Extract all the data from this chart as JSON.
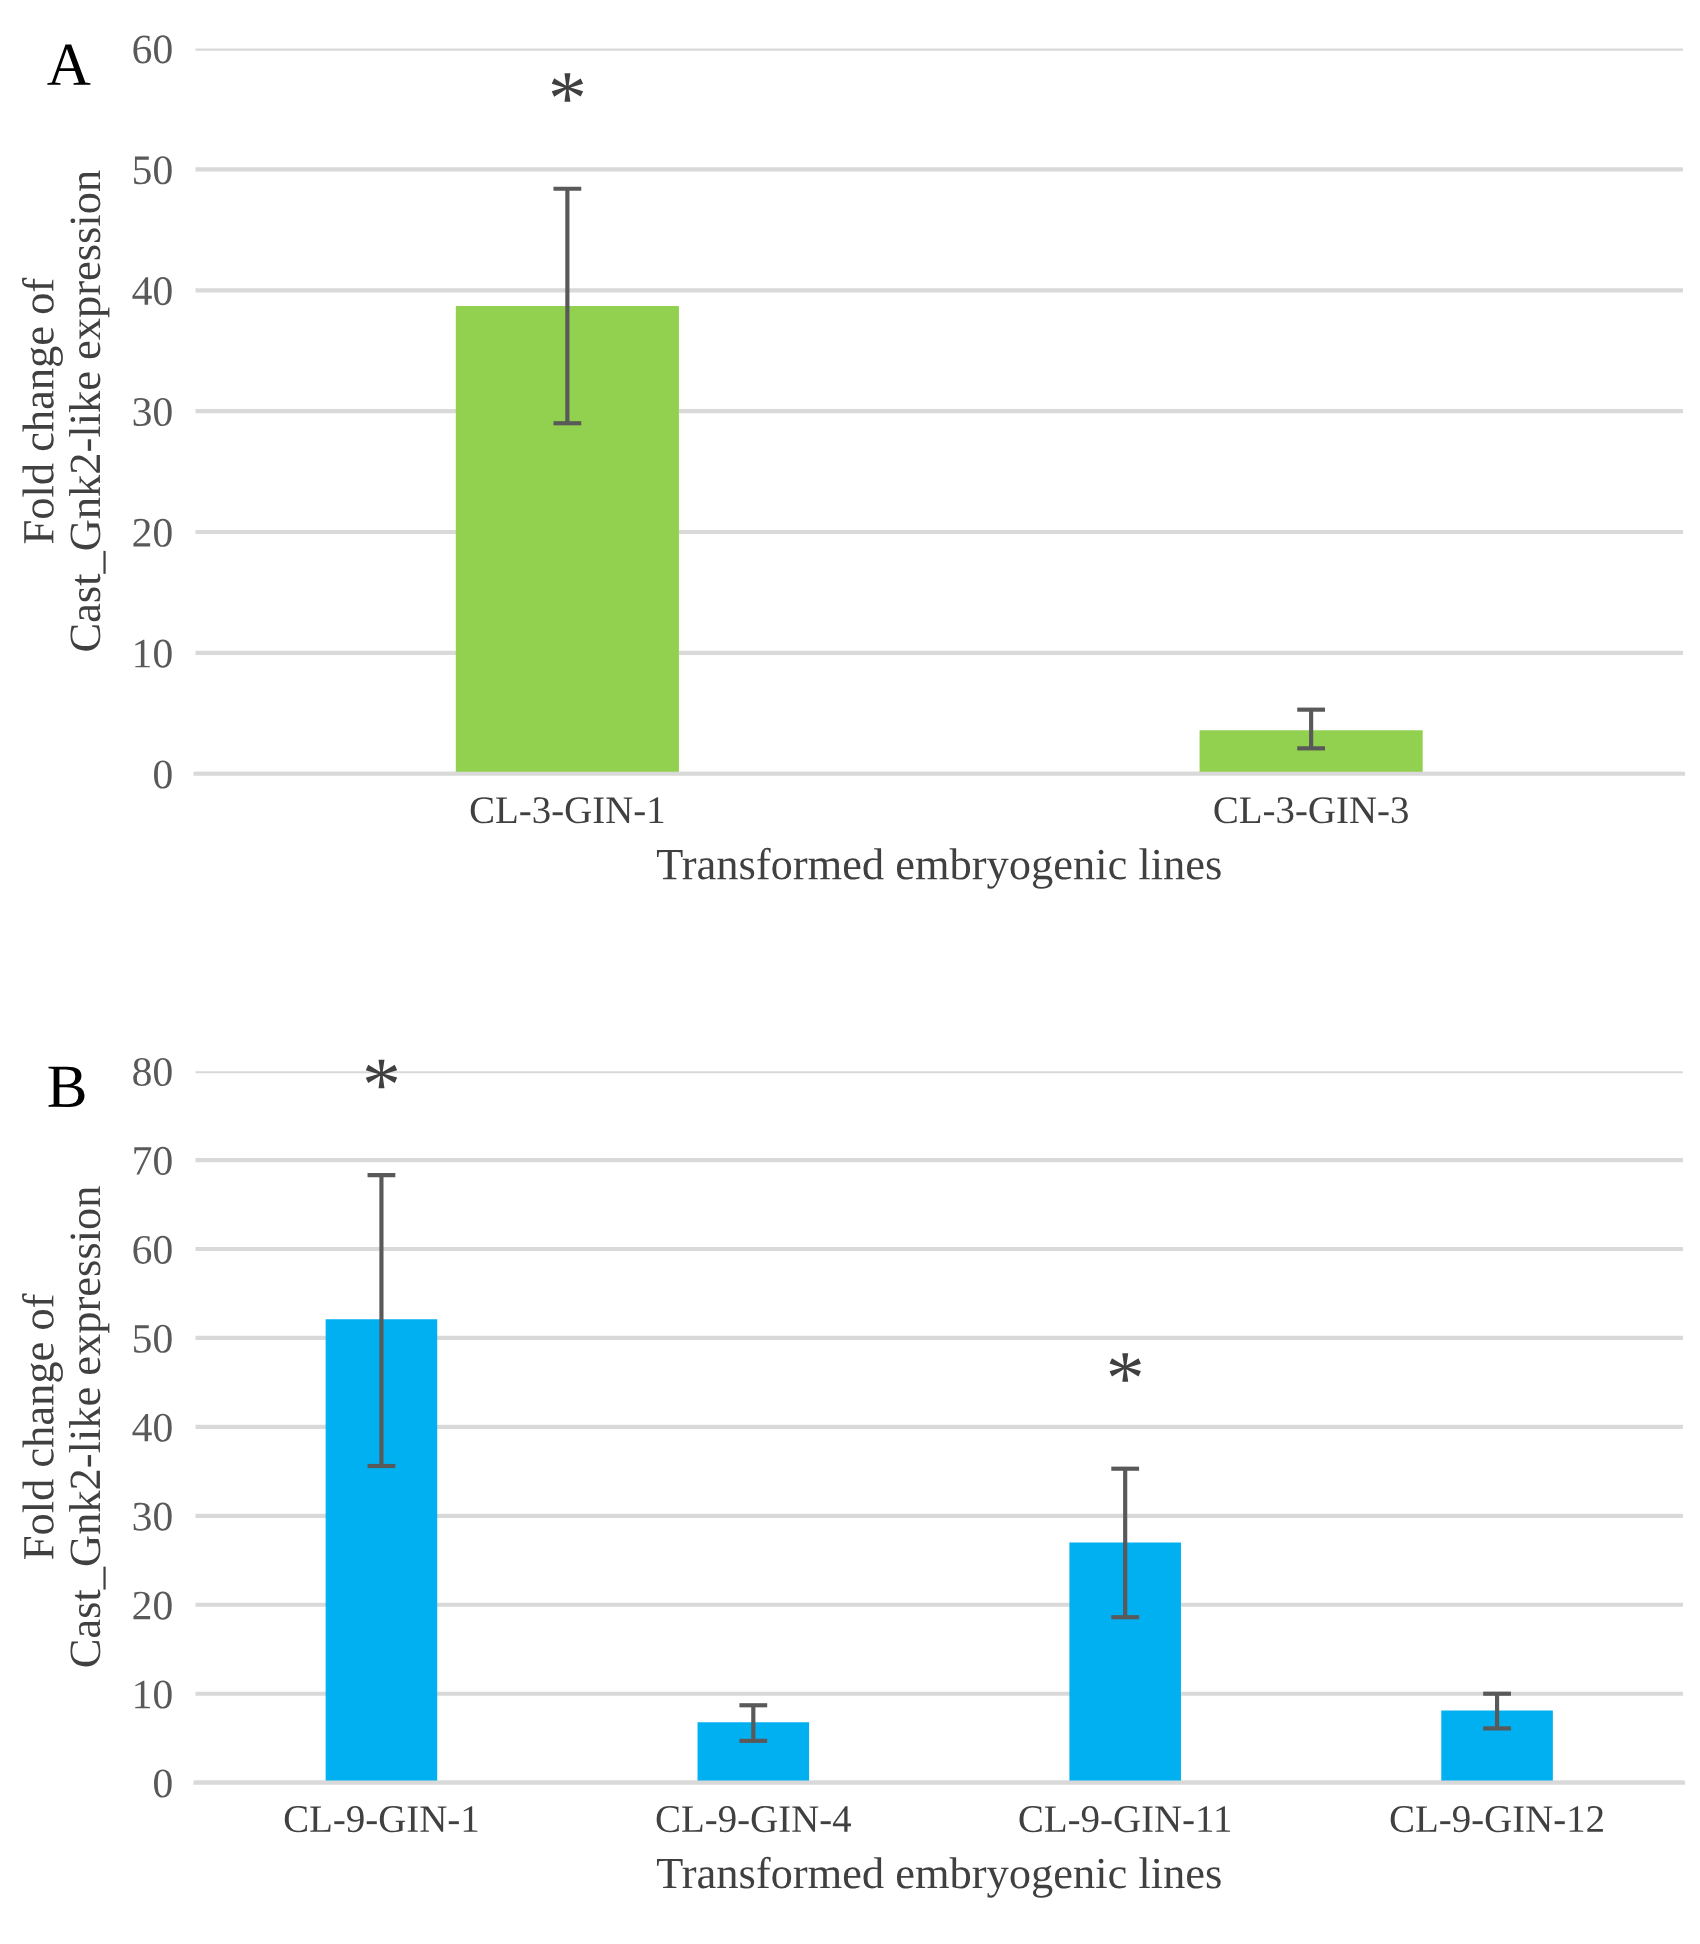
{
  "chart_data": [
    {
      "type": "bar",
      "title": "A",
      "categories": [
        "CL-3-GIN-1",
        "CL-3-GIN-3"
      ],
      "values": [
        38.7,
        3.6
      ],
      "color": "#92d050",
      "errors": [
        [
          29.0,
          48.4
        ],
        [
          2.1,
          5.3
        ]
      ],
      "xlabel": "Transformed embryogenic lines",
      "ylabel": "Fold change of\nCast_Gnk2-like expression",
      "ylim": [
        0,
        60
      ],
      "yticks": [
        0,
        10,
        20,
        30,
        40,
        50,
        60
      ],
      "grid": "y",
      "annotations": [
        "*"
      ]
    },
    {
      "type": "bar",
      "title": "B",
      "categories": [
        "CL-9-GIN-1",
        "CL-9-GIN-4",
        "CL-9-GIN-11",
        "CL-9-GIN-12"
      ],
      "values": [
        52.1,
        6.8,
        27.0,
        8.1
      ],
      "color": "#00b0f0",
      "errors": [
        [
          35.6,
          68.3
        ],
        [
          4.7,
          8.7
        ],
        [
          18.6,
          35.3
        ],
        [
          6.1,
          10.0
        ]
      ],
      "xlabel": "Transformed embryogenic lines",
      "ylabel": "Fold change of\nCast_Gnk2-like expression",
      "ylim": [
        0,
        80
      ],
      "yticks": [
        0,
        10,
        20,
        30,
        40,
        50,
        60,
        70,
        80
      ],
      "grid": "y",
      "annotations": [
        "*",
        "*"
      ]
    }
  ]
}
